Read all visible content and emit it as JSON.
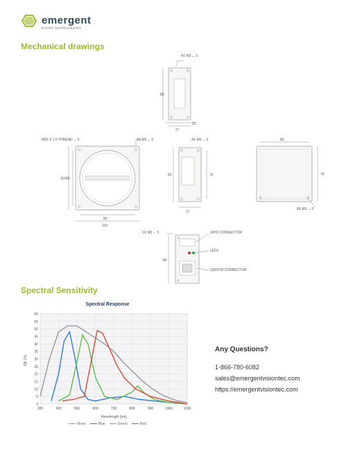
{
  "brand": {
    "name": "emergent",
    "tagline": "vision technologies"
  },
  "accent_color": "#9cbb2e",
  "title_color": "#2b4a5c",
  "sections": {
    "mech": "Mechanical drawings",
    "spec": "Spectral Sensitivity"
  },
  "annotations": {
    "thread": "M95 X 1.0 THREAD ⌄ 5",
    "screw4x": "4X M3 ⌄ 5",
    "screw2x": "2X M3 ⌄ 5",
    "gpio": "GPIO CONNECTOR",
    "leds": "LEDs",
    "qsfp": "QSFP28 CONNECTOR"
  },
  "dims": {
    "115": "115",
    "80": "80",
    "70": "70",
    "35": "35",
    "27": "27"
  },
  "chart": {
    "title": "Spectral Response",
    "xlabel": "Wavelength [nm]",
    "ylabel": "QE (%)",
    "xlim": [
      300,
      1100
    ],
    "ylim": [
      0,
      60
    ],
    "xtick_step": 100,
    "ytick_step": 5,
    "bg": "#f4f4f6",
    "grid": "#dcdce0",
    "series": [
      {
        "name": "Mono",
        "color": "#999999",
        "points": [
          [
            300,
            5
          ],
          [
            350,
            30
          ],
          [
            400,
            48
          ],
          [
            450,
            52
          ],
          [
            500,
            52
          ],
          [
            550,
            48
          ],
          [
            600,
            44
          ],
          [
            650,
            40
          ],
          [
            700,
            35
          ],
          [
            750,
            28
          ],
          [
            800,
            22
          ],
          [
            850,
            16
          ],
          [
            900,
            11
          ],
          [
            950,
            7
          ],
          [
            1000,
            4
          ],
          [
            1050,
            2
          ],
          [
            1100,
            1
          ]
        ]
      },
      {
        "name": "Blue",
        "color": "#2e7cd6",
        "points": [
          [
            360,
            2
          ],
          [
            400,
            20
          ],
          [
            430,
            42
          ],
          [
            460,
            48
          ],
          [
            490,
            30
          ],
          [
            520,
            10
          ],
          [
            560,
            3
          ],
          [
            600,
            2
          ],
          [
            680,
            4
          ],
          [
            760,
            5
          ],
          [
            840,
            3
          ],
          [
            920,
            2
          ],
          [
            1000,
            1
          ],
          [
            1100,
            0
          ]
        ]
      },
      {
        "name": "Green",
        "color": "#5fbf4a",
        "points": [
          [
            400,
            2
          ],
          [
            460,
            6
          ],
          [
            500,
            28
          ],
          [
            530,
            46
          ],
          [
            560,
            40
          ],
          [
            600,
            18
          ],
          [
            650,
            5
          ],
          [
            720,
            3
          ],
          [
            800,
            8
          ],
          [
            830,
            12
          ],
          [
            870,
            7
          ],
          [
            920,
            3
          ],
          [
            1000,
            1
          ],
          [
            1100,
            0
          ]
        ]
      },
      {
        "name": "Red",
        "color": "#d94b3a",
        "points": [
          [
            420,
            2
          ],
          [
            480,
            3
          ],
          [
            540,
            5
          ],
          [
            580,
            30
          ],
          [
            610,
            49
          ],
          [
            640,
            47
          ],
          [
            680,
            36
          ],
          [
            720,
            25
          ],
          [
            760,
            17
          ],
          [
            820,
            10
          ],
          [
            900,
            5
          ],
          [
            1000,
            2
          ],
          [
            1100,
            0
          ]
        ]
      }
    ]
  },
  "contact": {
    "title": "Any Questions?",
    "phone": "1-866-780-6082",
    "email": "sales@emergentvisiontec.com",
    "url": "https://emergentvisiontec.com"
  }
}
